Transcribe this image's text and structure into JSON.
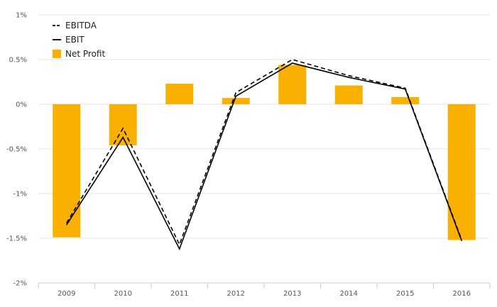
{
  "chart_data": {
    "type": "bar",
    "categories": [
      "2009",
      "2010",
      "2011",
      "2012",
      "2013",
      "2014",
      "2015",
      "2016"
    ],
    "ylim": [
      -2,
      1
    ],
    "yticks": [
      1,
      0.5,
      0,
      -0.5,
      -1,
      -1.5,
      -2
    ],
    "ytick_labels": [
      "1%",
      "0.5%",
      "0%",
      "-0.5%",
      "-1%",
      "-1.5%",
      "-2%"
    ],
    "grid": true,
    "legend_position": "top-left",
    "series": [
      {
        "name": "EBITDA",
        "kind": "line",
        "style": "dashed",
        "color": "#000000",
        "values": [
          -1.33,
          -0.27,
          -1.57,
          0.13,
          0.5,
          0.32,
          0.18,
          -1.52
        ]
      },
      {
        "name": "EBIT",
        "kind": "line",
        "style": "solid",
        "color": "#000000",
        "values": [
          -1.35,
          -0.37,
          -1.62,
          0.09,
          0.46,
          0.3,
          0.17,
          -1.53
        ]
      },
      {
        "name": "Net Profit",
        "kind": "bar",
        "color": "#F9B000",
        "values": [
          -1.49,
          -0.46,
          0.23,
          0.07,
          0.44,
          0.21,
          0.08,
          -1.52
        ]
      }
    ]
  }
}
